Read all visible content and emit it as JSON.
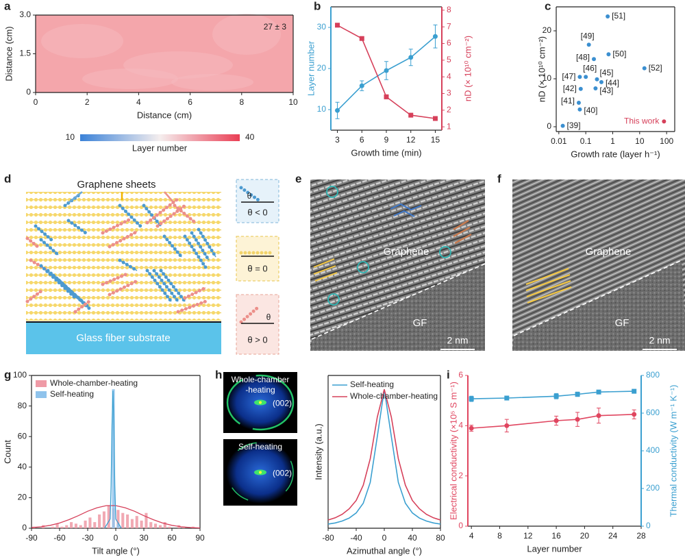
{
  "chart_data": [
    {
      "panel": "a",
      "type": "heatmap",
      "xlabel": "Distance (cm)",
      "ylabel": "Distance (cm)",
      "xlim": [
        0,
        10
      ],
      "xticks": [
        0,
        2,
        4,
        6,
        8,
        10
      ],
      "ylim": [
        0,
        3
      ],
      "yticks": [
        0,
        1.5,
        {
          "value": 3,
          "label": "3.0"
        }
      ],
      "color": "#f4a6ab",
      "annotation": "27 ± 3",
      "colorbar": {
        "label": "Layer number",
        "lim": [
          10,
          40
        ],
        "ticks": [
          10,
          40
        ],
        "colors": [
          "#3b82d8",
          "#f5eeee",
          "#ea3f55"
        ]
      }
    },
    {
      "panel": "b",
      "type": "line",
      "xlabel": "Growth time (min)",
      "ylabel": "Layer number",
      "y2label": "nD (× 10¹⁰ cm⁻²)",
      "x": [
        3,
        6,
        9,
        12,
        15
      ],
      "xlim": [
        2.2,
        15.8
      ],
      "xticks": [
        3,
        6,
        9,
        12,
        15
      ],
      "ylim": [
        5,
        35
      ],
      "yticks": [
        10,
        20,
        30
      ],
      "y2lim": [
        0.8,
        8.2
      ],
      "y2ticks": [
        1,
        2,
        3,
        4,
        5,
        6,
        7,
        8
      ],
      "series": [
        {
          "color": "#3a9fd0",
          "marker": "circle",
          "values": [
            9.8,
            15.8,
            19.5,
            22.7,
            27.8
          ],
          "errors": [
            2,
            1.2,
            2.2,
            2,
            2.8
          ]
        },
        {
          "color": "#d6405a",
          "marker": "square",
          "axis": "y2",
          "values": [
            7.1,
            6.3,
            2.8,
            1.7,
            1.5
          ],
          "errors": [
            0.1,
            0.1,
            0.12,
            0.06,
            0.05
          ]
        }
      ]
    },
    {
      "panel": "c",
      "type": "scatter",
      "xlabel": "Growth rate (layer h⁻¹)",
      "ylabel": "nD (× 10¹⁰ cm⁻²)",
      "xscale": "log",
      "xlim": [
        0.008,
        200
      ],
      "xticks": [
        0.01,
        0.1,
        1,
        10,
        100
      ],
      "ylim": [
        -1,
        25
      ],
      "yticks": [
        0,
        10,
        20
      ],
      "series": [
        {
          "color": "#3b8fd0",
          "label_color": "#222222",
          "x": [
            0.014,
            0.06,
            0.055,
            0.065,
            0.23,
            0.38,
            0.26,
            0.1,
            0.06,
            0.2,
            0.13,
            0.7,
            0.65,
            15
          ],
          "values": [
            0.2,
            3.6,
            5.0,
            7.9,
            8.0,
            9.3,
            9.9,
            10.4,
            10.4,
            14.1,
            17.1,
            15.1,
            23,
            12.2
          ],
          "labels": [
            "[39]",
            "[40]",
            "[41]",
            "[42]",
            "[43]",
            "[44]",
            "[45]",
            "[46]",
            "[47]",
            "[48]",
            "[49]",
            "[50]",
            "[51]",
            "[52]"
          ]
        },
        {
          "color": "#d6405a",
          "label_color": "#d6405a",
          "x": [
            80
          ],
          "values": [
            1.1
          ],
          "labels": [
            "This work"
          ]
        }
      ]
    },
    {
      "panel": "g",
      "type": "histogram",
      "xlabel": "Tilt angle (°)",
      "ylabel": "Count",
      "xlim": [
        -90,
        90
      ],
      "xticks": [
        -90,
        -60,
        -30,
        0,
        30,
        60,
        90
      ],
      "ylim": [
        0,
        100
      ],
      "yticks": [
        0,
        20,
        40,
        60,
        80,
        100
      ],
      "legend": "upper left",
      "bins": [
        -90,
        -85,
        -80,
        -75,
        -70,
        -65,
        -60,
        -55,
        -50,
        -45,
        -40,
        -35,
        -30,
        -25,
        -20,
        -15,
        -10,
        -5,
        0,
        5,
        10,
        15,
        20,
        25,
        30,
        35,
        40,
        45,
        50,
        55,
        60,
        65,
        70,
        75,
        80,
        85,
        90
      ],
      "series": [
        {
          "name": "Whole-chamber-heating",
          "color": "#ef9aa6",
          "values": [
            1,
            0,
            2,
            0,
            1,
            3,
            1,
            2,
            4,
            3,
            2,
            5,
            7,
            4,
            9,
            11,
            15,
            13,
            12,
            10,
            9,
            6,
            8,
            5,
            10,
            4,
            3,
            2,
            4,
            1,
            0,
            2,
            1,
            0,
            1,
            0
          ]
        },
        {
          "name": "Self-heating",
          "color": "#8fc3ec",
          "values": [
            0,
            0,
            0,
            0,
            0,
            0,
            0,
            0,
            0,
            0,
            0,
            0,
            0,
            0,
            0,
            0,
            0,
            91,
            3,
            0,
            0,
            0,
            0,
            0,
            0,
            0,
            0,
            0,
            0,
            0,
            0,
            0,
            0,
            0,
            0,
            0
          ]
        }
      ],
      "fits": [
        {
          "color": "#d6405a",
          "x": [
            -90,
            -80,
            -70,
            -60,
            -50,
            -40,
            -30,
            -20,
            -10,
            0,
            10,
            20,
            30,
            40,
            50,
            60,
            70,
            80,
            90
          ],
          "values": [
            0.44,
            0.96,
            1.9,
            3.4,
            5.6,
            8.2,
            11.1,
            13.4,
            14.8,
            14.8,
            13.4,
            11.1,
            8.2,
            5.6,
            3.4,
            1.9,
            0.96,
            0.44,
            0.18
          ]
        },
        {
          "color": "#3a9fd0",
          "x": [
            -12,
            -6,
            -5,
            -4,
            -3,
            -2,
            -1,
            0,
            6
          ],
          "values": [
            0,
            6,
            28,
            67,
            90,
            67,
            28,
            6,
            0
          ]
        }
      ]
    },
    {
      "panel": "h",
      "type": "line",
      "xlabel": "Azimuthal angle (°)",
      "ylabel": "Intensity (a.u.)",
      "x": [
        -80,
        -70,
        -60,
        -50,
        -40,
        -30,
        -20,
        -10,
        0,
        10,
        20,
        30,
        40,
        50,
        60,
        70,
        80
      ],
      "xlim": [
        -80,
        80
      ],
      "xticks": [
        -80,
        -40,
        0,
        40,
        80
      ],
      "ylim": [
        0,
        1.1
      ],
      "legend": "upper left",
      "series": [
        {
          "name": "Self-heating",
          "color": "#3a9fd0",
          "values": [
            0.03,
            0.038,
            0.052,
            0.073,
            0.11,
            0.18,
            0.33,
            0.66,
            1,
            0.66,
            0.33,
            0.18,
            0.11,
            0.073,
            0.052,
            0.038,
            0.03
          ]
        },
        {
          "name": "Whole-chamber-heating",
          "color": "#d6405a",
          "values": [
            0.059,
            0.075,
            0.1,
            0.14,
            0.2,
            0.31,
            0.5,
            0.8,
            1,
            0.8,
            0.5,
            0.31,
            0.2,
            0.14,
            0.1,
            0.075,
            0.059
          ]
        }
      ]
    },
    {
      "panel": "i",
      "type": "line",
      "xlabel": "Layer number",
      "ylabel": "Electrical conductivity (×10⁵ S m⁻¹)",
      "y2label": "Thermal conductivity (W m⁻¹ K⁻¹)",
      "x": [
        4,
        9,
        16,
        19,
        22,
        27
      ],
      "xlim": [
        3.5,
        28
      ],
      "xticks": [
        4,
        8,
        12,
        16,
        20,
        24,
        28
      ],
      "ylim": [
        0,
        6
      ],
      "yticks": [
        0,
        2,
        4,
        6
      ],
      "y2lim": [
        0,
        800
      ],
      "y2ticks": [
        0,
        200,
        400,
        600,
        800
      ],
      "series": [
        {
          "color": "#e0455f",
          "marker": "circle",
          "values": [
            3.9,
            4.0,
            4.2,
            4.25,
            4.4,
            4.45
          ],
          "errors": [
            0.12,
            0.25,
            0.18,
            0.28,
            0.3,
            0.18
          ]
        },
        {
          "color": "#3a9fd0",
          "marker": "square",
          "axis": "y2",
          "values": [
            676,
            680,
            690,
            700,
            712,
            716
          ],
          "errors": [
            14,
            8,
            14,
            12,
            8,
            8
          ]
        }
      ]
    }
  ],
  "diagrams": {
    "d": {
      "panel": "d",
      "title": "Graphene sheets",
      "substrate": "Glass fiber substrate",
      "angle_symbol": "θ",
      "cases": [
        "θ < 0",
        "θ = 0",
        "θ > 0"
      ]
    },
    "e": {
      "panel": "e",
      "label": "Graphene",
      "substrate": "GF",
      "scale": "2 nm"
    },
    "f": {
      "panel": "f",
      "label": "Graphene",
      "substrate": "GF",
      "scale": "2 nm"
    },
    "h_images": [
      {
        "title": [
          "Whole-chamber",
          "-heating"
        ],
        "peak": "(002)"
      },
      {
        "title": [
          "Self-heating"
        ],
        "peak": "(002)"
      }
    ]
  }
}
